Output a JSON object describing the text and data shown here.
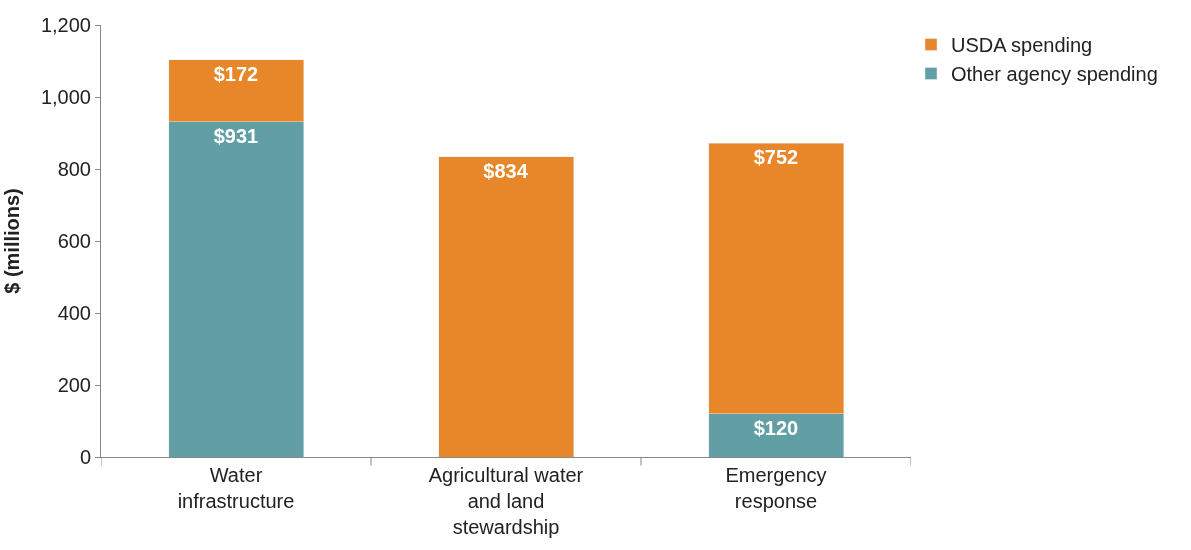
{
  "chart_data": {
    "type": "bar",
    "stacked": true,
    "ylabel": "$ (millions)",
    "categories": [
      "Water\ninfrastructure",
      "Agricultural water\nand land\nstewardship",
      "Emergency\nresponse"
    ],
    "series": [
      {
        "name": "Other agency spending",
        "color": "#619fa5",
        "values": [
          931,
          null,
          120
        ],
        "value_labels": [
          "$931",
          null,
          "$120"
        ]
      },
      {
        "name": "USDA spending",
        "color": "#e8862a",
        "values": [
          172,
          834,
          752
        ],
        "value_labels": [
          "$172",
          "$834",
          "$752"
        ]
      }
    ],
    "ylim": [
      0,
      1200
    ],
    "yticks": [
      0,
      200,
      400,
      600,
      800,
      {
        "value": 1000,
        "label": "1,000"
      },
      {
        "value": 1200,
        "label": "1,200"
      }
    ],
    "legend": "top right"
  }
}
